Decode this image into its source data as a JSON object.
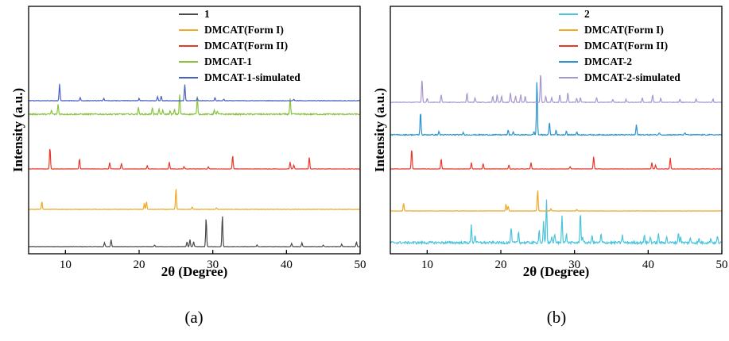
{
  "chart_data": [
    {
      "type": "line",
      "panel_label": "(a)",
      "xlabel": "2θ (Degree)",
      "ylabel": "Intensity (a.u.)",
      "xlim": [
        5,
        50
      ],
      "x_ticks": [
        "10",
        "20",
        "30",
        "40",
        "50"
      ],
      "x_tick_values": [
        10,
        20,
        30,
        40,
        50
      ],
      "legend_position": "top-right",
      "series": [
        {
          "name": "1",
          "color": "#4a4a4a",
          "offset": 0,
          "base": 0.2,
          "peaks": [
            [
              15.3,
              5
            ],
            [
              16.2,
              9
            ],
            [
              22.1,
              2
            ],
            [
              26.5,
              6
            ],
            [
              26.9,
              9
            ],
            [
              27.4,
              6
            ],
            [
              29.1,
              36
            ],
            [
              31.3,
              40
            ],
            [
              36,
              2
            ],
            [
              40.7,
              4
            ],
            [
              42.1,
              5
            ],
            [
              45,
              2
            ],
            [
              47.5,
              3
            ],
            [
              49.5,
              6
            ]
          ]
        },
        {
          "name": "DMCAT(Form I)",
          "color": "#f0a825",
          "offset": 1,
          "base": 0.2,
          "peaks": [
            [
              6.8,
              10
            ],
            [
              20.7,
              7
            ],
            [
              21,
              10
            ],
            [
              25,
              27
            ],
            [
              27.2,
              3
            ],
            [
              30.5,
              2
            ]
          ]
        },
        {
          "name": "DMCAT(Form II)",
          "color": "#e83a2a",
          "offset": 2,
          "base": 0.2,
          "peaks": [
            [
              7.9,
              28
            ],
            [
              11.9,
              13
            ],
            [
              16,
              8
            ],
            [
              17.6,
              7
            ],
            [
              21.1,
              4
            ],
            [
              24.1,
              9
            ],
            [
              26.1,
              3
            ],
            [
              29.4,
              3
            ],
            [
              32.7,
              17
            ],
            [
              40.5,
              9
            ],
            [
              41,
              5
            ],
            [
              43.1,
              15
            ]
          ]
        },
        {
          "name": "DMCAT-1",
          "color": "#8ac43f",
          "offset": 3,
          "base": 0.8,
          "peaks": [
            [
              8.1,
              5
            ],
            [
              9,
              13
            ],
            [
              19.9,
              9
            ],
            [
              21.8,
              9
            ],
            [
              22.7,
              6
            ],
            [
              23.2,
              5
            ],
            [
              24.2,
              4
            ],
            [
              24.8,
              6
            ],
            [
              25.5,
              25
            ],
            [
              27.9,
              22
            ],
            [
              30.2,
              5
            ],
            [
              30.6,
              4
            ],
            [
              40.5,
              20
            ]
          ]
        },
        {
          "name": "DMCAT-1-simulated",
          "color": "#4a5fc4",
          "offset": 4,
          "base": 0.3,
          "peaks": [
            [
              9.2,
              21
            ],
            [
              12,
              4
            ],
            [
              15.2,
              3
            ],
            [
              20,
              3
            ],
            [
              22.5,
              5
            ],
            [
              23,
              6
            ],
            [
              26.2,
              21
            ],
            [
              27.9,
              3
            ],
            [
              30.3,
              4
            ],
            [
              31.5,
              2
            ],
            [
              41,
              2
            ]
          ]
        }
      ]
    },
    {
      "type": "line",
      "panel_label": "(b)",
      "xlabel": "2θ (Degree)",
      "ylabel": "Intensity (a.u.)",
      "xlim": [
        5,
        50
      ],
      "x_ticks": [
        "10",
        "20",
        "30",
        "40",
        "50"
      ],
      "x_tick_values": [
        10,
        20,
        30,
        40,
        50
      ],
      "legend_position": "top-right",
      "series": [
        {
          "name": "2",
          "color": "#49c4db",
          "offset": 0,
          "base": 1.5,
          "peaks": [
            [
              16,
              22
            ],
            [
              16.5,
              10
            ],
            [
              21.4,
              20
            ],
            [
              22.4,
              14
            ],
            [
              25.2,
              17
            ],
            [
              25.8,
              26
            ],
            [
              26.2,
              55
            ],
            [
              26.9,
              8
            ],
            [
              27.3,
              12
            ],
            [
              28.3,
              36
            ],
            [
              28.9,
              12
            ],
            [
              30.8,
              40
            ],
            [
              31.1,
              8
            ],
            [
              32.4,
              10
            ],
            [
              33.6,
              11
            ],
            [
              36.5,
              10
            ],
            [
              39.5,
              10
            ],
            [
              40.3,
              8
            ],
            [
              41.4,
              11
            ],
            [
              42.5,
              8
            ],
            [
              44.1,
              13
            ],
            [
              44.4,
              8
            ],
            [
              45.7,
              6
            ],
            [
              46.9,
              5
            ],
            [
              48.5,
              6
            ],
            [
              49.4,
              8
            ]
          ]
        },
        {
          "name": "DMCAT(Form I)",
          "color": "#f0a825",
          "offset": 1,
          "base": 0.2,
          "peaks": [
            [
              6.8,
              10
            ],
            [
              20.7,
              9
            ],
            [
              21,
              6
            ],
            [
              25,
              27
            ],
            [
              26.8,
              3
            ],
            [
              30.3,
              2
            ]
          ]
        },
        {
          "name": "DMCAT(Form II)",
          "color": "#e83a2a",
          "offset": 2,
          "base": 0.2,
          "peaks": [
            [
              7.9,
              26
            ],
            [
              11.9,
              13
            ],
            [
              16,
              8
            ],
            [
              17.6,
              7
            ],
            [
              21.1,
              5
            ],
            [
              24.1,
              8
            ],
            [
              29.4,
              3
            ],
            [
              32.6,
              16
            ],
            [
              40.5,
              8
            ],
            [
              41,
              5
            ],
            [
              43,
              14
            ]
          ]
        },
        {
          "name": "DMCAT-2",
          "color": "#2a93d1",
          "offset": 3,
          "base": 0.6,
          "peaks": [
            [
              9.1,
              30
            ],
            [
              11.6,
              4
            ],
            [
              14.9,
              3
            ],
            [
              21,
              6
            ],
            [
              21.7,
              4
            ],
            [
              24.5,
              4
            ],
            [
              24.9,
              70
            ],
            [
              26.6,
              16
            ],
            [
              27.5,
              6
            ],
            [
              28.9,
              5
            ],
            [
              30.3,
              4
            ],
            [
              38.4,
              13
            ],
            [
              41.5,
              3
            ],
            [
              45,
              3
            ]
          ]
        },
        {
          "name": "DMCAT-2-simulated",
          "color": "#a797cf",
          "offset": 4,
          "base": 0.4,
          "peaks": [
            [
              9.3,
              30
            ],
            [
              10,
              5
            ],
            [
              11.9,
              10
            ],
            [
              15.4,
              12
            ],
            [
              16.5,
              6
            ],
            [
              18.9,
              8
            ],
            [
              19.5,
              10
            ],
            [
              20.1,
              8
            ],
            [
              21.3,
              12
            ],
            [
              22,
              8
            ],
            [
              22.7,
              10
            ],
            [
              23.3,
              8
            ],
            [
              25.4,
              38
            ],
            [
              26.1,
              8
            ],
            [
              26.9,
              6
            ],
            [
              28,
              10
            ],
            [
              29.1,
              12
            ],
            [
              30.3,
              5
            ],
            [
              30.8,
              6
            ],
            [
              33,
              6
            ],
            [
              35.2,
              4
            ],
            [
              37,
              4
            ],
            [
              39.2,
              6
            ],
            [
              40.6,
              10
            ],
            [
              41.7,
              5
            ],
            [
              44.3,
              4
            ],
            [
              46.5,
              4
            ],
            [
              48.8,
              4
            ]
          ]
        }
      ]
    }
  ]
}
